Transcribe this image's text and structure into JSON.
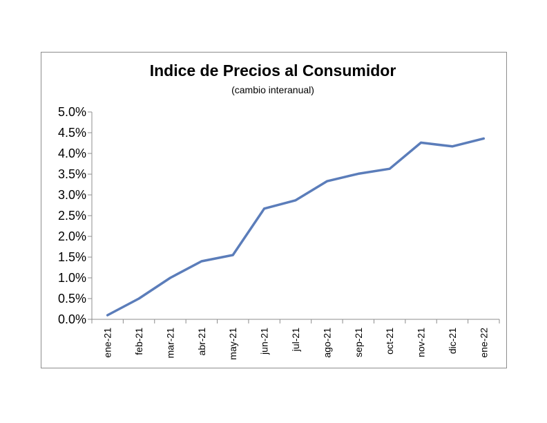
{
  "chart_data": {
    "type": "line",
    "title": "Indice de Precios al Consumidor",
    "subtitle": "(cambio interanual)",
    "xlabel": "",
    "ylabel": "",
    "categories": [
      "ene-21",
      "feb-21",
      "mar-21",
      "abr-21",
      "may-21",
      "jun-21",
      "jul-21",
      "ago-21",
      "sep-21",
      "oct-21",
      "nov-21",
      "dic-21",
      "ene-22"
    ],
    "series": [
      {
        "values": [
          0.1,
          0.5,
          1.0,
          1.4,
          1.55,
          2.67,
          2.87,
          3.33,
          3.51,
          3.63,
          4.26,
          4.17,
          4.36
        ],
        "color": "#5b7dba"
      }
    ],
    "ylim": [
      0,
      5.0
    ],
    "yticks": [
      "0.0%",
      "0.5%",
      "1.0%",
      "1.5%",
      "2.0%",
      "2.5%",
      "3.0%",
      "3.5%",
      "4.0%",
      "4.5%",
      "5.0%"
    ],
    "grid": false,
    "legend": "none"
  }
}
